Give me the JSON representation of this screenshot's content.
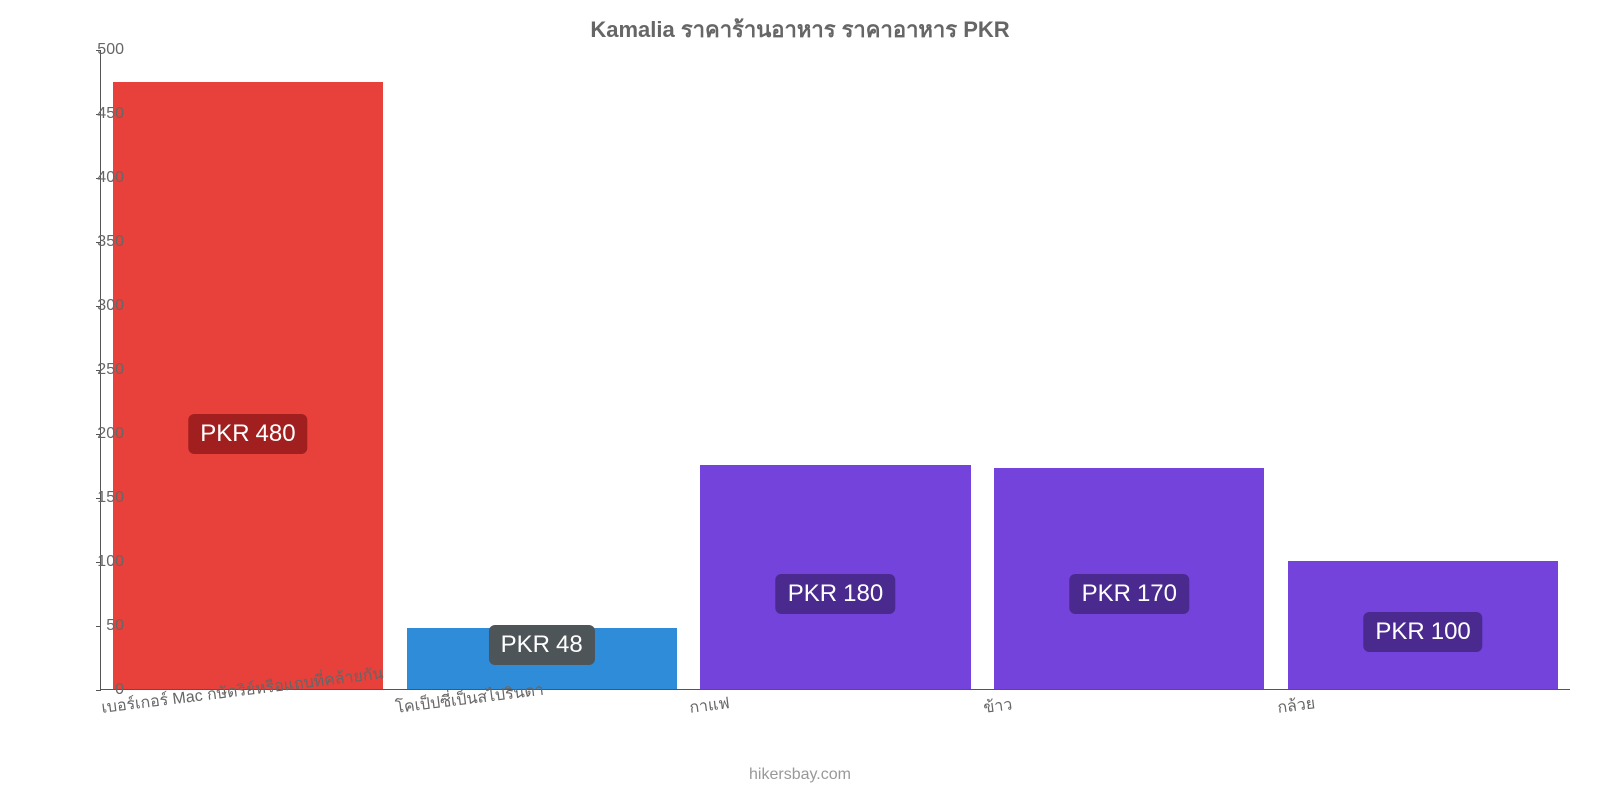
{
  "chart": {
    "type": "bar",
    "title": "Kamalia ราคาร้านอาหาร ราคาอาหาร PKR",
    "title_color": "#666666",
    "title_fontsize": 22,
    "background_color": "#ffffff",
    "axis_color": "#555555",
    "tick_label_color": "#666666",
    "tick_fontsize": 16,
    "xlabel_fontsize": 16,
    "bar_width_pct": 92,
    "currency": "PKR",
    "ylim": [
      0,
      500
    ],
    "ytick_step": 50,
    "yticks": [
      0,
      50,
      100,
      150,
      200,
      250,
      300,
      350,
      400,
      450,
      500
    ],
    "categories": [
      "เบอร์เกอร์ Mac กษัตริย์หรือแถบที่คล้ายกัน",
      "โคเป็ปซี่เป็นสไปรินดา",
      "กาแฟ",
      "ข้าว",
      "กล้วย"
    ],
    "values": [
      475,
      48,
      175,
      173,
      100
    ],
    "display_values": [
      "480",
      "48",
      "180",
      "170",
      "100"
    ],
    "bar_colors": [
      "#e8403a",
      "#2f8cd8",
      "#7443dc",
      "#7443dc",
      "#7443dc"
    ],
    "badge_colors": [
      "#a21f1f",
      "#4e5559",
      "#4a2a8f",
      "#4a2a8f",
      "#4a2a8f"
    ],
    "badge_fontsize": 24,
    "badge_text_color": "#ffffff",
    "badge_offsets_percent_from_top": [
      57,
      90,
      82,
      82,
      88
    ],
    "xlabel_rotate_deg": -7,
    "attribution": "hikersbay.com",
    "attribution_color": "#999999",
    "attribution_fontsize": 16
  }
}
